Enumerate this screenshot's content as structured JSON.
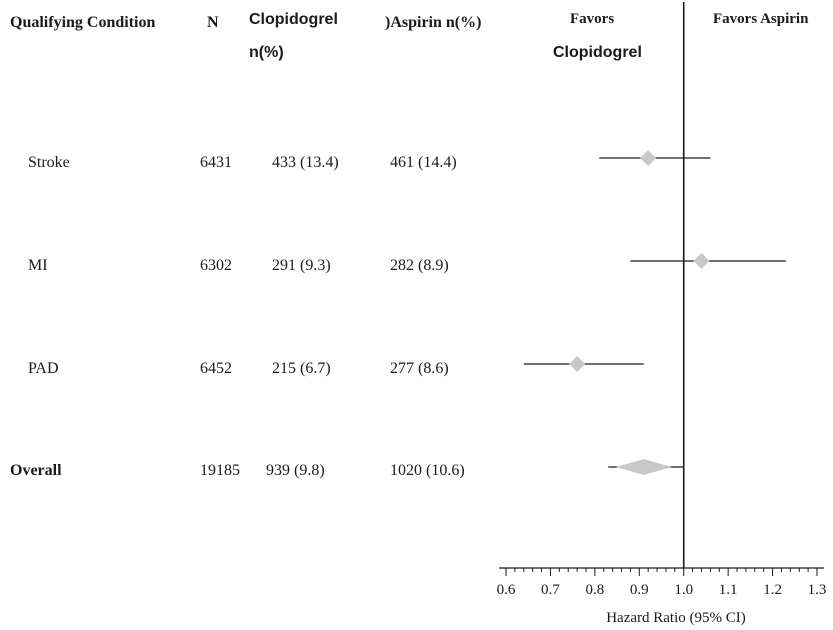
{
  "header": {
    "condition": "Qualifying Condition",
    "n": "N",
    "clopidogrel_line1": "Clopidogrel",
    "clopidogrel_line2": "n(%)",
    "aspirin": ")Aspirin n(%)",
    "favors_left_line1": "Favors",
    "favors_left_line2": "Clopidogrel",
    "favors_right": "Favors Aspirin"
  },
  "rows": [
    {
      "condition": "Stroke",
      "n": "6431",
      "clopidogrel": "433 (13.4)",
      "aspirin": "461 (14.4)"
    },
    {
      "condition": "MI",
      "n": "6302",
      "clopidogrel": "291 (9.3)",
      "aspirin": "282 (8.9)"
    },
    {
      "condition": "PAD",
      "n": "6452",
      "clopidogrel": "215 (6.7)",
      "aspirin": "277 (8.6)"
    },
    {
      "condition": "Overall",
      "n": "19185",
      "clopidogrel": "939 (9.8)",
      "aspirin": "1020 (10.6)"
    }
  ],
  "chart_data": {
    "type": "forest",
    "xlabel": "Hazard Ratio (95% CI)",
    "xlim": [
      0.6,
      1.3
    ],
    "ticks": [
      "0.6",
      "0.7",
      "0.8",
      "0.9",
      "1.0",
      "1.1",
      "1.2",
      "1.3"
    ],
    "reference_line": 1.0,
    "estimates": [
      {
        "label": "Stroke",
        "hr": 0.92,
        "lower": 0.81,
        "upper": 1.06
      },
      {
        "label": "MI",
        "hr": 1.04,
        "lower": 0.88,
        "upper": 1.23
      },
      {
        "label": "PAD",
        "hr": 0.76,
        "lower": 0.64,
        "upper": 0.91
      },
      {
        "label": "Overall",
        "hr": 0.91,
        "lower": 0.83,
        "upper": 1.0
      }
    ]
  },
  "colors": {
    "marker": "#c8c8c8",
    "line": "#1a1a1a"
  }
}
